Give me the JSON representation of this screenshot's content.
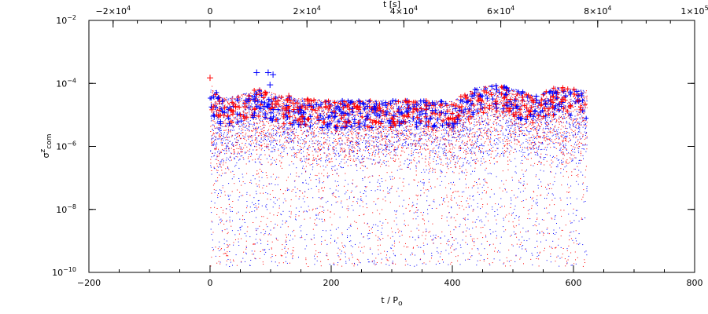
{
  "chart_data": {
    "type": "scatter",
    "title": "",
    "xlabel": "t / P",
    "xlabel_sub": "o",
    "ylabel": "σ",
    "ylabel_sup": "z",
    "ylabel_sub": "com",
    "top_xlabel": "t [s]",
    "xlim": [
      -200,
      800
    ],
    "top_xlim": [
      -25000,
      100000
    ],
    "ylim": [
      1e-10,
      0.01
    ],
    "y_scale": "log",
    "grid": false,
    "x_ticks": [
      {
        "v": -200,
        "label": "−200"
      },
      {
        "v": 0,
        "label": "0"
      },
      {
        "v": 200,
        "label": "200"
      },
      {
        "v": 400,
        "label": "400"
      },
      {
        "v": 600,
        "label": "600"
      },
      {
        "v": 800,
        "label": "800"
      }
    ],
    "top_x_ticks": [
      {
        "v": -20000,
        "label": "−2×10",
        "exp": "4"
      },
      {
        "v": 0,
        "label": "0",
        "exp": ""
      },
      {
        "v": 20000,
        "label": "2×10",
        "exp": "4"
      },
      {
        "v": 40000,
        "label": "4×10",
        "exp": "4"
      },
      {
        "v": 60000,
        "label": "6×10",
        "exp": "4"
      },
      {
        "v": 80000,
        "label": "8×10",
        "exp": "4"
      },
      {
        "v": 100000,
        "label": "1×10",
        "exp": "5"
      }
    ],
    "y_ticks": [
      {
        "v": 1e-10,
        "label": "10",
        "exp": "−10"
      },
      {
        "v": 1e-08,
        "label": "10",
        "exp": "−8"
      },
      {
        "v": 1e-06,
        "label": "10",
        "exp": "−6"
      },
      {
        "v": 0.0001,
        "label": "10",
        "exp": "−4"
      },
      {
        "v": 0.01,
        "label": "10",
        "exp": "−2"
      }
    ],
    "series": [
      {
        "color": "#0000ff",
        "marker": "+ / dot"
      },
      {
        "color": "#ff0000",
        "marker": "+ / dot"
      }
    ],
    "t_range": [
      0,
      622
    ],
    "upper_envelope": [
      [
        0,
        0.00012
      ],
      [
        5,
        7e-05
      ],
      [
        20,
        3.5e-05
      ],
      [
        60,
        5e-05
      ],
      [
        80,
        7e-05
      ],
      [
        120,
        4e-05
      ],
      [
        200,
        3e-05
      ],
      [
        300,
        3e-05
      ],
      [
        400,
        2.8e-05
      ],
      [
        440,
        8e-05
      ],
      [
        470,
        0.0001
      ],
      [
        500,
        7e-05
      ],
      [
        540,
        4e-05
      ],
      [
        570,
        8e-05
      ],
      [
        600,
        7e-05
      ],
      [
        622,
        6e-05
      ]
    ],
    "dense_floor": [
      [
        0,
        1e-07
      ],
      [
        100,
        2e-07
      ],
      [
        200,
        1.5e-07
      ],
      [
        300,
        2e-07
      ],
      [
        400,
        8e-08
      ],
      [
        450,
        1e-07
      ],
      [
        500,
        5e-07
      ],
      [
        550,
        2e-07
      ],
      [
        622,
        1.5e-07
      ]
    ],
    "outliers": [
      {
        "t": 77,
        "y": 0.00022,
        "color": "#0000ff"
      },
      {
        "t": 96,
        "y": 0.00022,
        "color": "#0000ff"
      },
      {
        "t": 104,
        "y": 0.00019,
        "color": "#0000ff"
      },
      {
        "t": 99,
        "y": 9e-05,
        "color": "#0000ff"
      },
      {
        "t": 130,
        "y": 4e-05,
        "color": "#ff0000"
      },
      {
        "t": 0,
        "y": 0.00015,
        "color": "#ff0000"
      }
    ],
    "min_y": 1e-10
  }
}
